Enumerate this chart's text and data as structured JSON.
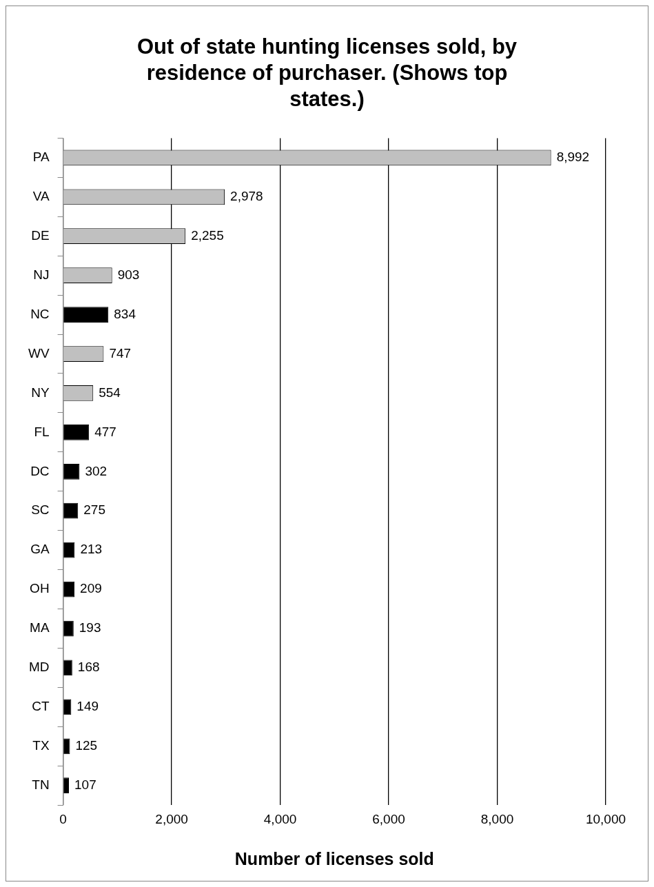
{
  "chart_data": {
    "type": "bar",
    "orientation": "horizontal",
    "title": "Out of state hunting licenses sold, by residence of purchaser. (Shows top states.)",
    "xlabel": "Number of licenses sold",
    "categories": [
      "PA",
      "VA",
      "DE",
      "NJ",
      "NC",
      "WV",
      "NY",
      "FL",
      "DC",
      "SC",
      "GA",
      "OH",
      "MA",
      "MD",
      "CT",
      "TX",
      "TN"
    ],
    "values": [
      8992,
      2978,
      2255,
      903,
      834,
      747,
      554,
      477,
      302,
      275,
      213,
      209,
      193,
      168,
      149,
      125,
      107
    ],
    "colors": [
      "#c0c0c0",
      "#c0c0c0",
      "#c0c0c0",
      "#c0c0c0",
      "#000000",
      "#c0c0c0",
      "#c0c0c0",
      "#000000",
      "#000000",
      "#000000",
      "#000000",
      "#000000",
      "#000000",
      "#000000",
      "#000000",
      "#000000",
      "#000000"
    ],
    "xlim": [
      0,
      10000
    ],
    "xticks": [
      0,
      {
        "value": 2000,
        "label": "2,000"
      },
      {
        "value": 4000,
        "label": "4,000"
      },
      {
        "value": 6000,
        "label": "6,000"
      },
      {
        "value": 8000,
        "label": "8,000"
      },
      {
        "value": 10000,
        "label": "10,000"
      }
    ],
    "value_labels": [
      "8,992",
      "2,978",
      "2,255",
      "903",
      "834",
      "747",
      "554",
      "477",
      "302",
      "275",
      "213",
      "209",
      "193",
      "168",
      "149",
      "125",
      "107"
    ],
    "grid": "x",
    "legend": false
  }
}
